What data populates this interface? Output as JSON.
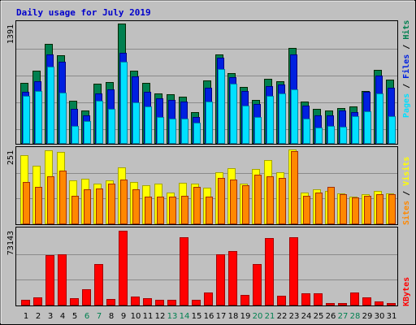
{
  "colors": {
    "background": "#c0c0c0",
    "title": "#0000cc",
    "hits": "#008050",
    "files": "#0020e0",
    "pages": "#00e0ff",
    "visits": "#ffff00",
    "sites": "#ff8800",
    "kbytes": "#ff0000",
    "weekend_day": "#008050",
    "weekday_day": "#000000"
  },
  "chart_data": {
    "type": "bar",
    "title": "Daily usage for July 2019",
    "categories": [
      "1",
      "2",
      "3",
      "4",
      "5",
      "6",
      "7",
      "8",
      "9",
      "10",
      "11",
      "12",
      "13",
      "14",
      "15",
      "16",
      "17",
      "18",
      "19",
      "20",
      "21",
      "22",
      "23",
      "24",
      "25",
      "26",
      "27",
      "28",
      "29",
      "30",
      "31"
    ],
    "weekend_days": [
      "6",
      "7",
      "13",
      "14",
      "20",
      "21",
      "27",
      "28"
    ],
    "panels": [
      {
        "id": "top",
        "max_label": "1391",
        "ylim": [
          0,
          1391
        ],
        "legend": [
          "Pages",
          "Files",
          "Hits"
        ],
        "series": [
          {
            "name": "Hits",
            "values": [
              700,
              840,
              1150,
              1020,
              490,
              380,
              690,
              710,
              1391,
              840,
              700,
              580,
              570,
              540,
              360,
              730,
              1030,
              810,
              650,
              500,
              750,
              720,
              1110,
              480,
              400,
              380,
              410,
              430,
              610,
              850,
              740
            ]
          },
          {
            "name": "Files",
            "values": [
              600,
              720,
              1030,
              950,
              400,
              320,
              580,
              620,
              1050,
              780,
              600,
              520,
              500,
              480,
              300,
              640,
              990,
              770,
              610,
              450,
              660,
              680,
              1030,
              440,
              320,
              320,
              380,
              360,
              600,
              790,
              640
            ]
          },
          {
            "name": "Pages",
            "values": [
              550,
              610,
              890,
              590,
              200,
              260,
              490,
              400,
              950,
              470,
              430,
              300,
              280,
              280,
              240,
              480,
              860,
              690,
              440,
              300,
              550,
              580,
              620,
              280,
              180,
              200,
              190,
              310,
              370,
              580,
              310
            ]
          }
        ]
      },
      {
        "id": "middle",
        "max_label": "251",
        "ylim": [
          0,
          251
        ],
        "legend": [
          "Sites",
          "Visits"
        ],
        "series": [
          {
            "name": "Visits",
            "values": [
              232,
              195,
              248,
              243,
              145,
              153,
              135,
              145,
              190,
              140,
              130,
              135,
              105,
              138,
              135,
              120,
              175,
              188,
              135,
              185,
              215,
              175,
              251,
              105,
              115,
              110,
              103,
              90,
              98,
              110,
              103
            ]
          },
          {
            "name": "Sites",
            "values": [
              140,
              125,
              160,
              180,
              95,
              115,
              118,
              135,
              150,
              115,
              90,
              90,
              92,
              95,
              125,
              92,
              155,
              150,
              130,
              165,
              160,
              155,
              246,
              95,
              105,
              125,
              100,
              87,
              95,
              100,
              98
            ]
          }
        ]
      },
      {
        "id": "bottom",
        "max_label": "73143",
        "ylim": [
          0,
          73143
        ],
        "legend": [
          "KBytes"
        ],
        "series": [
          {
            "name": "KBytes",
            "values": [
              5000,
              7500,
              49000,
              50000,
              6500,
              15000,
              40000,
              5500,
              73143,
              8000,
              6500,
              5000,
              5000,
              67000,
              5000,
              12000,
              50000,
              53000,
              10000,
              40000,
              66000,
              9000,
              67000,
              11000,
              11000,
              2000,
              2000,
              12000,
              7000,
              3000,
              2000
            ]
          }
        ]
      }
    ]
  }
}
